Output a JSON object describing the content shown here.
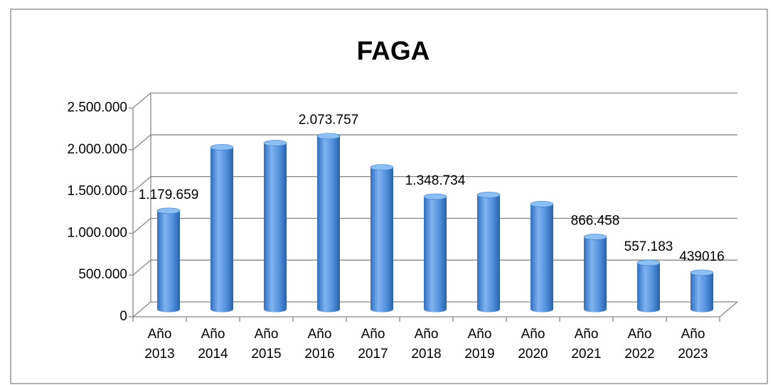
{
  "chart_data": {
    "type": "bar3d",
    "title": "FAGA",
    "categories": [
      "Año 2013",
      "Año 2014",
      "Año 2015",
      "Año 2016",
      "Año 2017",
      "Año 2018",
      "Año 2019",
      "Año 2020",
      "Año 2021",
      "Año 2022",
      "Año 2023"
    ],
    "values": [
      1179659,
      1940000,
      1990000,
      2073757,
      1700000,
      1348734,
      1370000,
      1260000,
      866458,
      557183,
      439016
    ],
    "value_labels": [
      "1.179.659",
      null,
      null,
      "2.073.757",
      null,
      "1.348.734",
      null,
      null,
      "866.458",
      "557.183",
      "439016"
    ],
    "color": "#4f8fdc",
    "ylim": [
      0,
      2500000
    ],
    "yticks": [
      0,
      {
        "value": 500000,
        "label": "500.000"
      },
      {
        "value": 1000000,
        "label": "1.000.000"
      },
      {
        "value": 1500000,
        "label": "1.500.000"
      },
      {
        "value": 2000000,
        "label": "2.000.000"
      },
      {
        "value": 2500000,
        "label": "2.500.000"
      }
    ],
    "grid": true
  }
}
